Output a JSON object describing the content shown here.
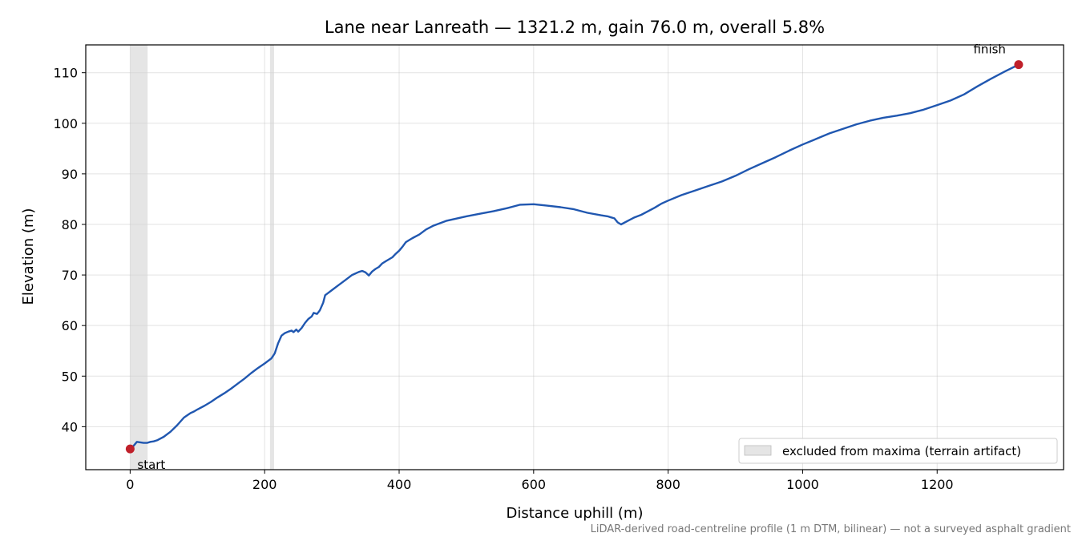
{
  "chart_data": {
    "type": "line",
    "title": "Lane near Lanreath — 1321.2 m, gain 76.0 m, overall 5.8%",
    "xlabel": "Distance uphill (m)",
    "ylabel": "Elevation (m)",
    "xlim": [
      -66,
      1388
    ],
    "ylim": [
      31.5,
      115.5
    ],
    "xticks": [
      0,
      200,
      400,
      600,
      800,
      1000,
      1200
    ],
    "yticks": [
      40,
      50,
      60,
      70,
      80,
      90,
      100,
      110
    ],
    "grid": true,
    "legend_position": "lower-right",
    "colors": {
      "line": "#2057b0",
      "endpoint": "#c0202a",
      "excluded_band": "#d3d3d3"
    },
    "series": [
      {
        "x": [
          0,
          5,
          10,
          15,
          20,
          25,
          30,
          35,
          40,
          50,
          60,
          70,
          80,
          90,
          95,
          100,
          110,
          120,
          130,
          140,
          150,
          160,
          170,
          180,
          190,
          200,
          210,
          212,
          215,
          220,
          225,
          230,
          235,
          240,
          243,
          247,
          250,
          255,
          260,
          265,
          270,
          273,
          278,
          282,
          287,
          290,
          295,
          300,
          310,
          320,
          330,
          340,
          345,
          350,
          355,
          360,
          365,
          370,
          375,
          380,
          390,
          395,
          400,
          405,
          410,
          415,
          420,
          430,
          440,
          450,
          460,
          470,
          480,
          490,
          500,
          520,
          540,
          560,
          580,
          600,
          620,
          640,
          660,
          680,
          700,
          710,
          715,
          720,
          725,
          730,
          740,
          750,
          760,
          770,
          780,
          790,
          800,
          820,
          840,
          860,
          880,
          900,
          920,
          940,
          960,
          980,
          1000,
          1020,
          1040,
          1060,
          1080,
          1100,
          1120,
          1140,
          1160,
          1180,
          1200,
          1220,
          1240,
          1260,
          1280,
          1300,
          1321.2
        ],
        "y": [
          35.6,
          36.2,
          37.0,
          36.9,
          36.8,
          36.8,
          37.0,
          37.1,
          37.3,
          38.0,
          39.0,
          40.3,
          41.8,
          42.7,
          43.0,
          43.4,
          44.1,
          44.9,
          45.8,
          46.6,
          47.5,
          48.5,
          49.5,
          50.6,
          51.6,
          52.5,
          53.5,
          53.9,
          54.5,
          56.5,
          58.0,
          58.5,
          58.8,
          59.0,
          58.7,
          59.2,
          58.8,
          59.5,
          60.5,
          61.3,
          61.8,
          62.5,
          62.3,
          63.0,
          64.5,
          66.0,
          66.5,
          67.0,
          68.0,
          69.0,
          70.0,
          70.6,
          70.8,
          70.5,
          69.9,
          70.7,
          71.2,
          71.6,
          72.3,
          72.7,
          73.5,
          74.2,
          74.8,
          75.6,
          76.5,
          76.9,
          77.3,
          78.0,
          79.0,
          79.7,
          80.2,
          80.7,
          81.0,
          81.3,
          81.6,
          82.1,
          82.6,
          83.2,
          83.9,
          84.0,
          83.7,
          83.4,
          83.0,
          82.3,
          81.8,
          81.6,
          81.4,
          81.2,
          80.4,
          80.0,
          80.7,
          81.4,
          81.9,
          82.6,
          83.3,
          84.1,
          84.7,
          85.8,
          86.7,
          87.6,
          88.5,
          89.6,
          90.9,
          92.1,
          93.3,
          94.6,
          95.8,
          96.9,
          98.0,
          98.9,
          99.8,
          100.5,
          101.1,
          101.5,
          102.0,
          102.7,
          103.6,
          104.5,
          105.7,
          107.3,
          108.8,
          110.2,
          111.6
        ]
      }
    ],
    "annotations": [
      {
        "text": "start",
        "x": 0,
        "y": 35.6
      },
      {
        "text": "finish",
        "x": 1321.2,
        "y": 111.6
      }
    ],
    "excluded_ranges": [
      [
        0,
        26
      ],
      [
        208,
        214
      ]
    ],
    "legend": [
      {
        "label": "excluded from maxima (terrain artifact)"
      }
    ],
    "footnote": "LiDAR-derived road-centreline profile (1 m DTM, bilinear) — not a surveyed asphalt gradient"
  }
}
